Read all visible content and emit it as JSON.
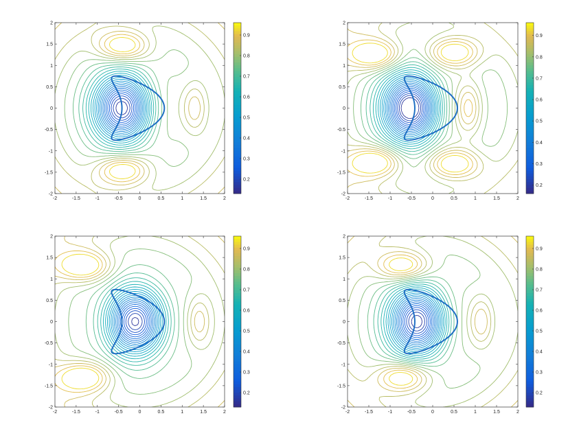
{
  "chart_data": [
    {
      "type": "contour",
      "panel": "top-left",
      "title": "",
      "xlabel": "",
      "ylabel": "",
      "xlim": [
        -2,
        2
      ],
      "ylim": [
        -2,
        2
      ],
      "xticks": [
        "-2",
        "-1.5",
        "-1",
        "-0.5",
        "0",
        "0.5",
        "1",
        "1.5",
        "2"
      ],
      "yticks": [
        "-2",
        "-1.5",
        "-1",
        "-0.5",
        "0",
        "0.5",
        "1",
        "1.5",
        "2"
      ],
      "colorbar": {
        "range": [
          0.13,
          0.96
        ],
        "ticks": [
          "0.2",
          "0.3",
          "0.4",
          "0.5",
          "0.6",
          "0.7",
          "0.8",
          "0.9"
        ]
      },
      "colormap": "parula",
      "field": {
        "center_low": [
          -0.4,
          0
        ],
        "side_highs": [
          [
            -0.4,
            1.45
          ],
          [
            -0.4,
            -1.45
          ]
        ],
        "right_high": [
          1.3,
          0
        ]
      },
      "obstacle": "kite"
    },
    {
      "type": "contour",
      "panel": "top-right",
      "title": "",
      "xlabel": "",
      "ylabel": "",
      "xlim": [
        -2,
        2
      ],
      "ylim": [
        -2,
        2
      ],
      "xticks": [
        "-2",
        "-1.5",
        "-1",
        "-0.5",
        "0",
        "0.5",
        "1",
        "1.5",
        "2"
      ],
      "yticks": [
        "-2",
        "-1.5",
        "-1",
        "-0.5",
        "0",
        "0.5",
        "1",
        "1.5",
        "2"
      ],
      "colorbar": {
        "range": [
          0.16,
          0.96
        ],
        "ticks": [
          "0.2",
          "0.3",
          "0.4",
          "0.5",
          "0.6",
          "0.7",
          "0.8",
          "0.9"
        ]
      },
      "colormap": "parula",
      "field": {
        "center_low": [
          -0.5,
          0
        ],
        "side_highs": [
          [
            -1.35,
            1.25
          ],
          [
            -1.35,
            -1.25
          ],
          [
            0.5,
            1.3
          ],
          [
            0.5,
            -1.3
          ]
        ],
        "right_high": [
          0.85,
          0
        ]
      },
      "obstacle": "kite"
    },
    {
      "type": "contour",
      "panel": "bottom-left",
      "title": "",
      "xlabel": "",
      "ylabel": "",
      "xlim": [
        -2,
        2
      ],
      "ylim": [
        -2,
        2
      ],
      "xticks": [
        "-2",
        "-1.5",
        "-1",
        "-0.5",
        "0",
        "0.5",
        "1",
        "1.5",
        "2"
      ],
      "yticks": [
        "-2",
        "-1.5",
        "-1",
        "-0.5",
        "0",
        "0.5",
        "1",
        "1.5",
        "2"
      ],
      "colorbar": {
        "range": [
          0.13,
          0.96
        ],
        "ticks": [
          "0.2",
          "0.3",
          "0.4",
          "0.5",
          "0.6",
          "0.7",
          "0.8",
          "0.9"
        ]
      },
      "colormap": "parula",
      "field": {
        "center_low": [
          -0.1,
          0
        ],
        "side_highs": [
          [
            -1.3,
            1.3
          ],
          [
            -1.3,
            -1.3
          ]
        ],
        "right_high": [
          1.4,
          0
        ]
      },
      "obstacle": "kite"
    },
    {
      "type": "contour",
      "panel": "bottom-right",
      "title": "",
      "xlabel": "",
      "ylabel": "",
      "xlim": [
        -2,
        2
      ],
      "ylim": [
        -2,
        2
      ],
      "xticks": [
        "-2",
        "-1.5",
        "-1",
        "-0.5",
        "0",
        "0.5",
        "1",
        "1.5",
        "2"
      ],
      "yticks": [
        "-2",
        "-1.5",
        "-1",
        "-0.5",
        "0",
        "0.5",
        "1",
        "1.5",
        "2"
      ],
      "colorbar": {
        "range": [
          0.13,
          0.96
        ],
        "ticks": [
          "0.2",
          "0.3",
          "0.4",
          "0.5",
          "0.6",
          "0.7",
          "0.8",
          "0.9"
        ]
      },
      "colormap": "parula",
      "field": {
        "center_low": [
          -0.35,
          0
        ],
        "side_highs": [
          [
            -0.7,
            1.3
          ],
          [
            -0.7,
            -1.3
          ]
        ],
        "right_high": [
          1.15,
          0
        ]
      },
      "obstacle": "kite"
    }
  ]
}
